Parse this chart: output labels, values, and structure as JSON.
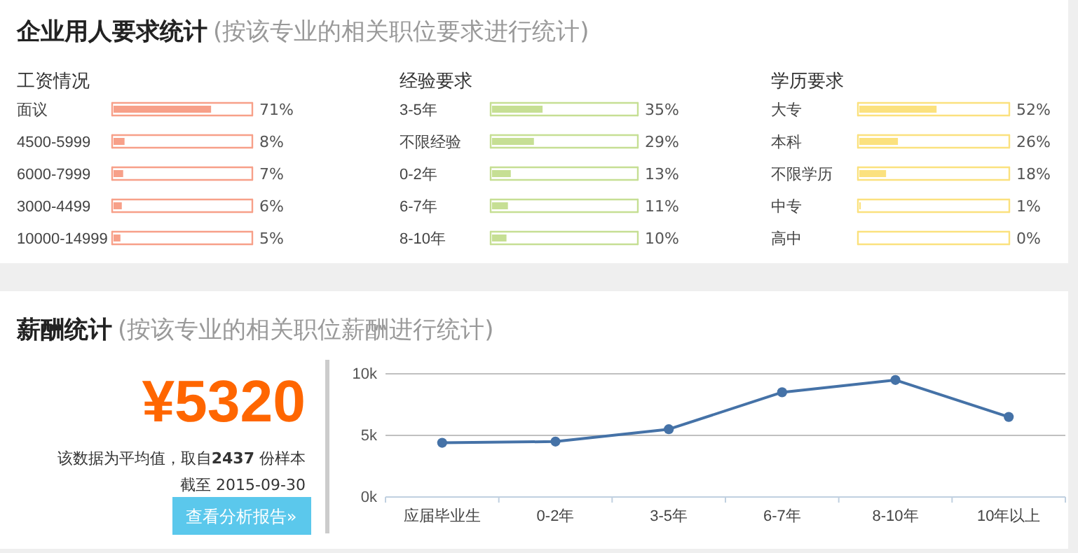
{
  "chart_data": [
    {
      "type": "bar",
      "orientation": "horizontal",
      "title": "工资情况",
      "annotations": [
        "企业用人要求统计",
        "(按该专业的相关职位要求进行统计)"
      ],
      "categories": [
        "面议",
        "4500-5999",
        "6000-7999",
        "3000-4499",
        "10000-14999"
      ],
      "values": [
        71,
        8,
        7,
        6,
        5
      ],
      "value_labels": [
        "71%",
        "8%",
        "7%",
        "6%",
        "5%"
      ],
      "color": "#f7a089",
      "xlim": [
        0,
        100
      ],
      "grid": true,
      "tick_labels": false
    },
    {
      "type": "bar",
      "orientation": "horizontal",
      "title": "经验要求",
      "categories": [
        "3-5年",
        "不限经验",
        "0-2年",
        "6-7年",
        "8-10年"
      ],
      "values": [
        35,
        29,
        13,
        11,
        10
      ],
      "value_labels": [
        "35%",
        "29%",
        "13%",
        "11%",
        "10%"
      ],
      "color": "#c6df94",
      "xlim": [
        0,
        100
      ],
      "grid": true,
      "tick_labels": false
    },
    {
      "type": "bar",
      "orientation": "horizontal",
      "title": "学历要求",
      "categories": [
        "大专",
        "本科",
        "不限学历",
        "中专",
        "高中"
      ],
      "values": [
        52,
        26,
        18,
        1,
        0
      ],
      "value_labels": [
        "52%",
        "26%",
        "18%",
        "1%",
        "0%"
      ],
      "color": "#fbe17e",
      "xlim": [
        0,
        100
      ],
      "grid": true,
      "tick_labels": false
    },
    {
      "type": "other",
      "title": "薪酬统计",
      "subtitle": "(按该专业的相关职位薪酬进行统计)",
      "annotations": [
        "¥5320",
        "该数据为平均值，取自2437 份样本",
        "截至 2015-09-30",
        "查看分析报告»"
      ]
    },
    {
      "type": "line",
      "categories": [
        "应届毕业生",
        "0-2年",
        "3-5年",
        "6-7年",
        "8-10年",
        "10年以上"
      ],
      "series": [
        {
          "color": "#4572a7",
          "values": [
            4400,
            4500,
            5500,
            8500,
            9500,
            6500
          ]
        }
      ],
      "ylim": [
        0,
        10000
      ],
      "yticks": [
        {
          "value": 0,
          "label": "0k"
        },
        {
          "value": 5000,
          "label": "5k"
        },
        {
          "value": 10000,
          "label": "10k"
        }
      ],
      "grid": "y",
      "marker": "circle",
      "line_style": "solid"
    }
  ]
}
